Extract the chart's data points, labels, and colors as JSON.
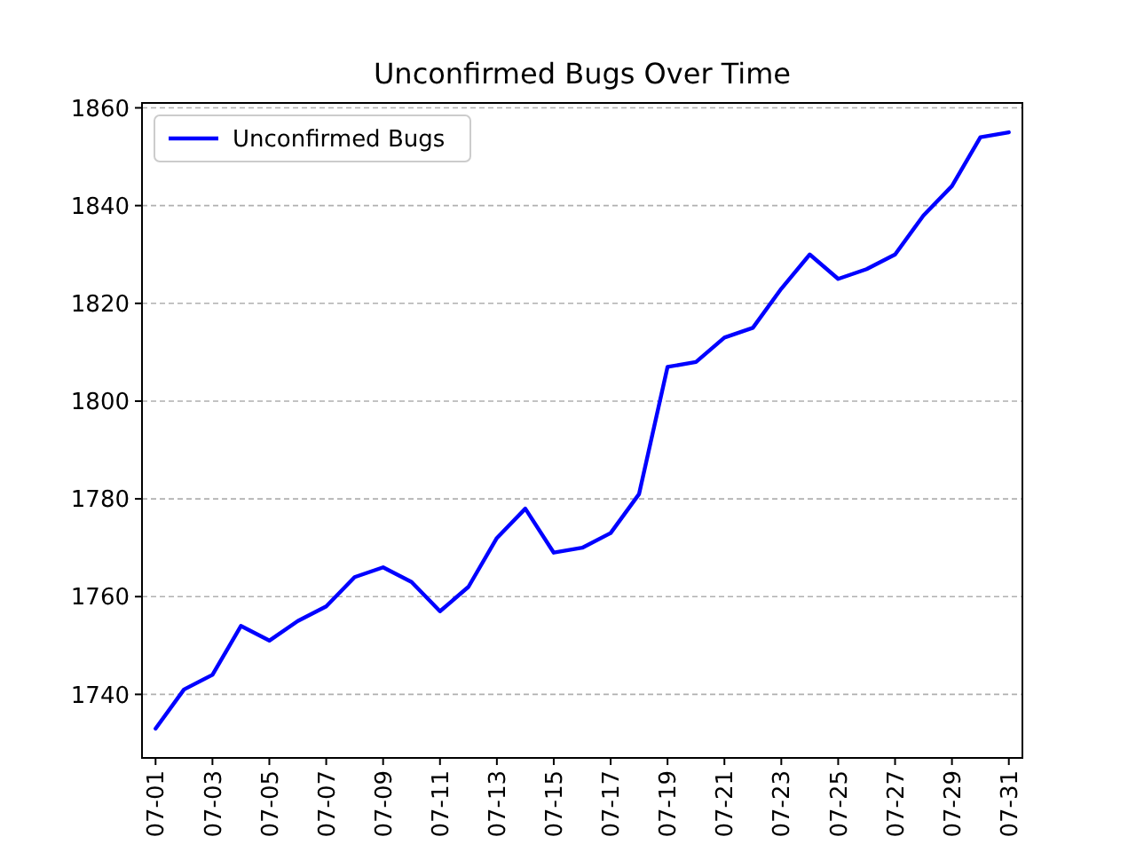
{
  "chart_data": {
    "type": "line",
    "title": "Unconfirmed Bugs Over Time",
    "categories": [
      "07-01",
      null,
      "07-03",
      null,
      "07-05",
      null,
      "07-07",
      null,
      "07-09",
      null,
      "07-11",
      null,
      "07-13",
      null,
      "07-15",
      null,
      "07-17",
      null,
      "07-19",
      null,
      "07-21",
      null,
      "07-23",
      null,
      "07-25",
      null,
      "07-27",
      null,
      "07-29",
      null,
      "07-31"
    ],
    "series": [
      {
        "name": "Unconfirmed Bugs",
        "color": "#0000ff",
        "values": [
          1733,
          1741,
          1744,
          1754,
          1751,
          1755,
          1758,
          1764,
          1766,
          1763,
          1757,
          1762,
          1772,
          1778,
          1769,
          1770,
          1773,
          1781,
          1807,
          1808,
          1813,
          1815,
          1823,
          1830,
          1825,
          1827,
          1830,
          1838,
          1844,
          1854,
          1855
        ]
      }
    ],
    "ylim": [
      1727,
      1861
    ],
    "yticks": [
      1740,
      1760,
      1780,
      1800,
      1820,
      1840,
      1860
    ],
    "grid": "y",
    "legend": "top left",
    "line_style": "solid",
    "marker": "none"
  }
}
